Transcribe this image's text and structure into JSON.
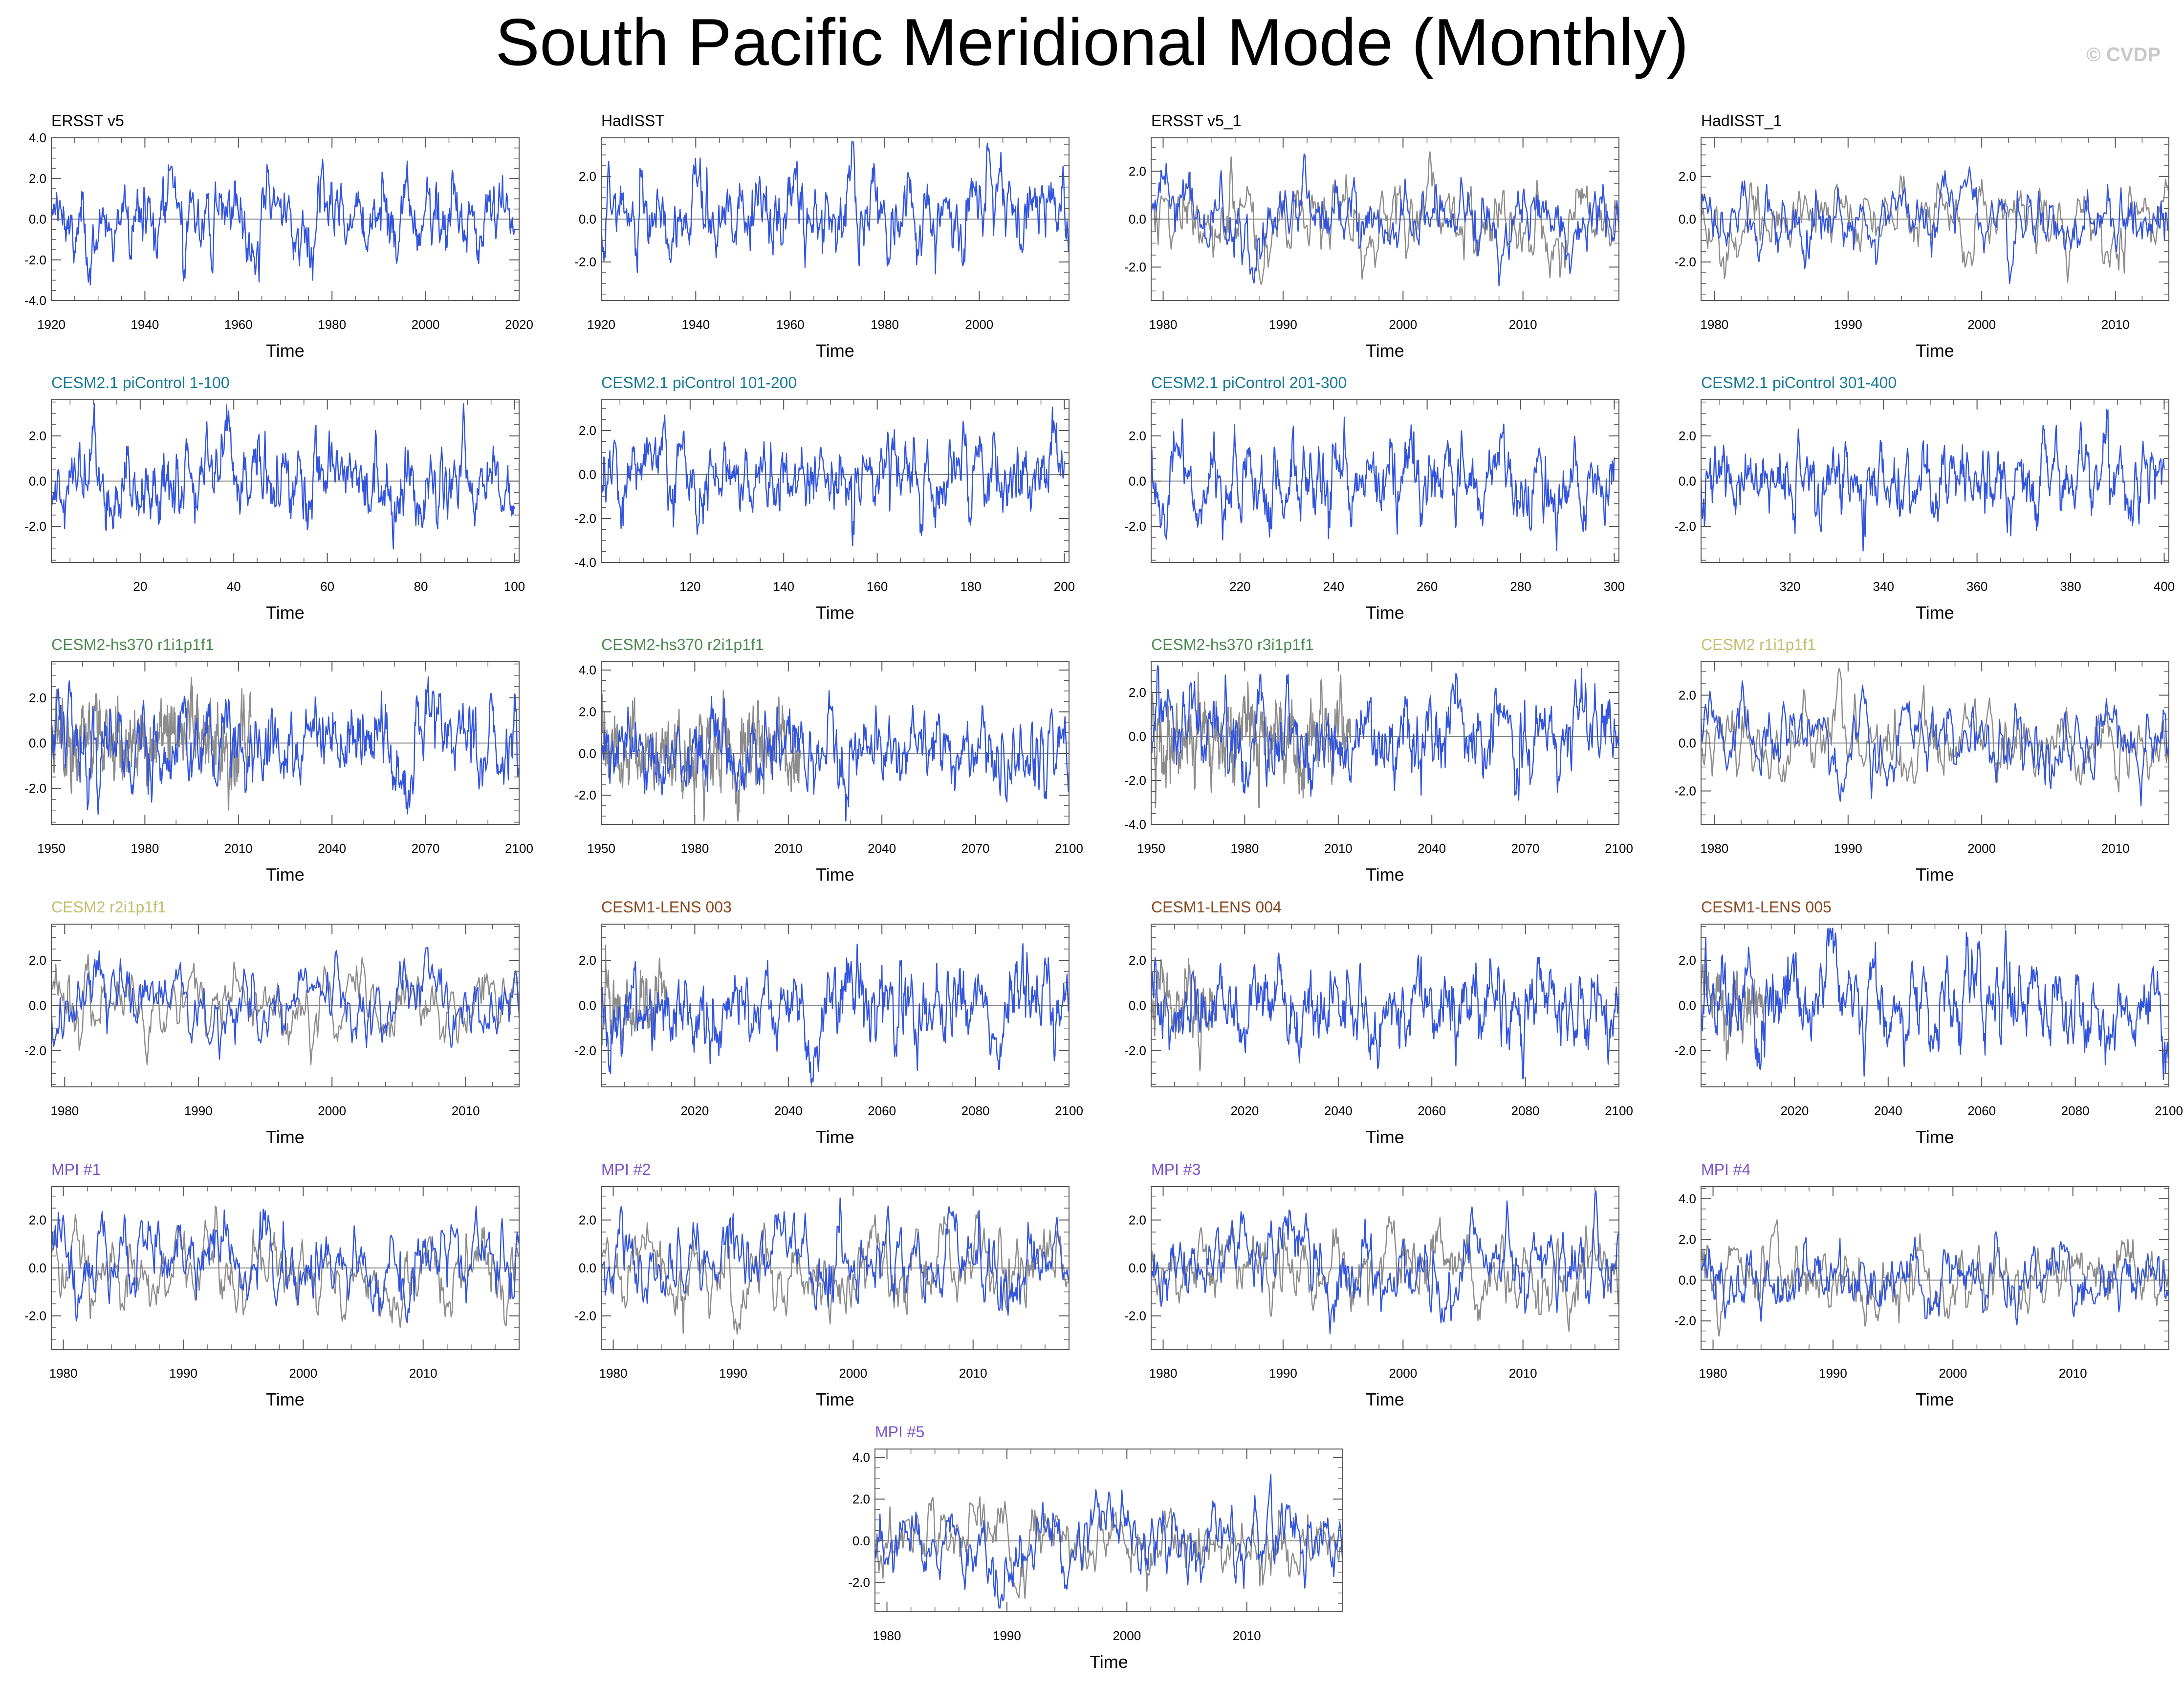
{
  "title": "South Pacific Meridional Mode (Monthly)",
  "watermark": "© CVDP",
  "colors": {
    "model_series": "#3355dd",
    "observation_series": "#8c8c8c",
    "zero_line": "#888888",
    "frame": "#555555"
  },
  "chart_data": [
    {
      "type": "line",
      "panel_title": "ERSST v5",
      "title_color": "#000000",
      "xlabel": "Time",
      "xlim": [
        1920,
        2020
      ],
      "xticks": [
        1920,
        1940,
        1960,
        1980,
        2000,
        2020
      ],
      "xtick_labels": [
        "1920",
        "1940",
        "1960",
        "1980",
        "2000",
        "2020"
      ],
      "ylim": [
        -4,
        4
      ],
      "yticks": [
        -4,
        -2,
        0,
        2,
        4
      ],
      "ytick_labels": [
        "-4.0",
        "-2.0",
        "0.0",
        "2.0",
        "4.0"
      ],
      "series": [
        {
          "x_range": [
            1920,
            2019
          ],
          "amplitude": 1.05,
          "seed": 11,
          "role": "model"
        }
      ]
    },
    {
      "type": "line",
      "panel_title": "HadISST",
      "title_color": "#000000",
      "xlabel": "Time",
      "xlim": [
        1920,
        2019
      ],
      "xticks": [
        1920,
        1940,
        1960,
        1980,
        2000
      ],
      "xtick_labels": [
        "1920",
        "1940",
        "1960",
        "1980",
        "2000"
      ],
      "ylim": [
        -3.8,
        3.8
      ],
      "yticks": [
        -2,
        0,
        2
      ],
      "ytick_labels": [
        "-2.0",
        "0.0",
        "2.0"
      ],
      "series": [
        {
          "x_range": [
            1920,
            2019
          ],
          "amplitude": 1.05,
          "seed": 12,
          "role": "model"
        }
      ]
    },
    {
      "type": "line",
      "panel_title": "ERSST v5_1",
      "title_color": "#000000",
      "xlabel": "Time",
      "xlim": [
        1979,
        2018
      ],
      "xticks": [
        1980,
        1990,
        2000,
        2010
      ],
      "xtick_labels": [
        "1980",
        "1990",
        "2000",
        "2010"
      ],
      "ylim": [
        -3.4,
        3.4
      ],
      "yticks": [
        -2,
        0,
        2
      ],
      "ytick_labels": [
        "-2.0",
        "0.0",
        "2.0"
      ],
      "series": [
        {
          "x_range": [
            1979,
            2018
          ],
          "amplitude": 0.9,
          "seed": 21,
          "role": "observation"
        },
        {
          "x_range": [
            1979,
            2018
          ],
          "amplitude": 0.95,
          "seed": 22,
          "role": "model"
        }
      ]
    },
    {
      "type": "line",
      "panel_title": "HadISST_1",
      "title_color": "#000000",
      "xlabel": "Time",
      "xlim": [
        1979,
        2014
      ],
      "xticks": [
        1980,
        1990,
        2000,
        2010
      ],
      "xtick_labels": [
        "1980",
        "1990",
        "2000",
        "2010"
      ],
      "ylim": [
        -3.8,
        3.8
      ],
      "yticks": [
        -2,
        0,
        2
      ],
      "ytick_labels": [
        "-2.0",
        "0.0",
        "2.0"
      ],
      "series": [
        {
          "x_range": [
            1979,
            2014
          ],
          "amplitude": 0.9,
          "seed": 31,
          "role": "observation"
        },
        {
          "x_range": [
            1979,
            2014
          ],
          "amplitude": 0.95,
          "seed": 32,
          "role": "model"
        }
      ]
    },
    {
      "type": "line",
      "panel_title": "CESM2.1 piControl 1-100",
      "title_color": "#167a96",
      "xlabel": "Time",
      "xlim": [
        1,
        101
      ],
      "xticks": [
        20,
        40,
        60,
        80,
        100
      ],
      "xtick_labels": [
        "20",
        "40",
        "60",
        "80",
        "100"
      ],
      "ylim": [
        -3.6,
        3.6
      ],
      "yticks": [
        -2,
        0,
        2
      ],
      "ytick_labels": [
        "-2.0",
        "0.0",
        "2.0"
      ],
      "series": [
        {
          "x_range": [
            1,
            100
          ],
          "amplitude": 1.0,
          "seed": 41,
          "role": "model"
        }
      ]
    },
    {
      "type": "line",
      "panel_title": "CESM2.1 piControl 101-200",
      "title_color": "#167a96",
      "xlabel": "Time",
      "xlim": [
        101,
        201
      ],
      "xticks": [
        120,
        140,
        160,
        180,
        200
      ],
      "xtick_labels": [
        "120",
        "140",
        "160",
        "180",
        "200"
      ],
      "ylim": [
        -4,
        3.4
      ],
      "yticks": [
        -4,
        -2,
        0,
        2
      ],
      "ytick_labels": [
        "-4.0",
        "-2.0",
        "0.0",
        "2.0"
      ],
      "series": [
        {
          "x_range": [
            101,
            200
          ],
          "amplitude": 1.0,
          "seed": 42,
          "role": "model"
        }
      ]
    },
    {
      "type": "line",
      "panel_title": "CESM2.1 piControl 201-300",
      "title_color": "#167a96",
      "xlabel": "Time",
      "xlim": [
        201,
        301
      ],
      "xticks": [
        220,
        240,
        260,
        280,
        300
      ],
      "xtick_labels": [
        "220",
        "240",
        "260",
        "280",
        "300"
      ],
      "ylim": [
        -3.6,
        3.6
      ],
      "yticks": [
        -2,
        0,
        2
      ],
      "ytick_labels": [
        "-2.0",
        "0.0",
        "2.0"
      ],
      "series": [
        {
          "x_range": [
            201,
            300
          ],
          "amplitude": 1.0,
          "seed": 43,
          "role": "model"
        }
      ]
    },
    {
      "type": "line",
      "panel_title": "CESM2.1 piControl 301-400",
      "title_color": "#167a96",
      "xlabel": "Time",
      "xlim": [
        301,
        401
      ],
      "xticks": [
        320,
        340,
        360,
        380,
        400
      ],
      "xtick_labels": [
        "320",
        "340",
        "360",
        "380",
        "400"
      ],
      "ylim": [
        -3.6,
        3.6
      ],
      "yticks": [
        -2,
        0,
        2
      ],
      "ytick_labels": [
        "-2.0",
        "0.0",
        "2.0"
      ],
      "series": [
        {
          "x_range": [
            301,
            400
          ],
          "amplitude": 1.0,
          "seed": 44,
          "role": "model"
        }
      ]
    },
    {
      "type": "line",
      "panel_title": "CESM2-hs370 r1i1p1f1",
      "title_color": "#4a8a4f",
      "xlabel": "Time",
      "xlim": [
        1950,
        2100
      ],
      "xticks": [
        1950,
        1980,
        2010,
        2040,
        2070,
        2100
      ],
      "xtick_labels": [
        "1950",
        "1980",
        "2010",
        "2040",
        "2070",
        "2100"
      ],
      "ylim": [
        -3.6,
        3.6
      ],
      "yticks": [
        -2,
        0,
        2
      ],
      "ytick_labels": [
        "-2.0",
        "0.0",
        "2.0"
      ],
      "series": [
        {
          "x_range": [
            1950,
            2014
          ],
          "amplitude": 1.0,
          "seed": 51,
          "role": "observation"
        },
        {
          "x_range": [
            1950,
            2100
          ],
          "amplitude": 1.1,
          "seed": 52,
          "role": "model"
        }
      ]
    },
    {
      "type": "line",
      "panel_title": "CESM2-hs370 r2i1p1f1",
      "title_color": "#4a8a4f",
      "xlabel": "Time",
      "xlim": [
        1950,
        2100
      ],
      "xticks": [
        1950,
        1980,
        2010,
        2040,
        2070,
        2100
      ],
      "xtick_labels": [
        "1950",
        "1980",
        "2010",
        "2040",
        "2070",
        "2100"
      ],
      "ylim": [
        -3.4,
        4.4
      ],
      "yticks": [
        -2,
        0,
        2,
        4
      ],
      "ytick_labels": [
        "-2.0",
        "0.0",
        "2.0",
        "4.0"
      ],
      "series": [
        {
          "x_range": [
            1950,
            2014
          ],
          "amplitude": 1.0,
          "seed": 53,
          "role": "observation"
        },
        {
          "x_range": [
            1950,
            2100
          ],
          "amplitude": 1.1,
          "seed": 54,
          "role": "model"
        }
      ]
    },
    {
      "type": "line",
      "panel_title": "CESM2-hs370 r3i1p1f1",
      "title_color": "#4a8a4f",
      "xlabel": "Time",
      "xlim": [
        1950,
        2100
      ],
      "xticks": [
        1950,
        1980,
        2010,
        2040,
        2070,
        2100
      ],
      "xtick_labels": [
        "1950",
        "1980",
        "2010",
        "2040",
        "2070",
        "2100"
      ],
      "ylim": [
        -4,
        3.4
      ],
      "yticks": [
        -4,
        -2,
        0,
        2
      ],
      "ytick_labels": [
        "-4.0",
        "-2.0",
        "0.0",
        "2.0"
      ],
      "series": [
        {
          "x_range": [
            1950,
            2014
          ],
          "amplitude": 1.0,
          "seed": 55,
          "role": "observation"
        },
        {
          "x_range": [
            1950,
            2100
          ],
          "amplitude": 1.1,
          "seed": 56,
          "role": "model"
        }
      ]
    },
    {
      "type": "line",
      "panel_title": "CESM2 r1i1p1f1",
      "title_color": "#c4be6c",
      "xlabel": "Time",
      "xlim": [
        1979,
        2014
      ],
      "xticks": [
        1980,
        1990,
        2000,
        2010
      ],
      "xtick_labels": [
        "1980",
        "1990",
        "2000",
        "2010"
      ],
      "ylim": [
        -3.4,
        3.4
      ],
      "yticks": [
        -2,
        0,
        2
      ],
      "ytick_labels": [
        "-2.0",
        "0.0",
        "2.0"
      ],
      "series": [
        {
          "x_range": [
            1979,
            2014
          ],
          "amplitude": 0.9,
          "seed": 61,
          "role": "observation"
        },
        {
          "x_range": [
            1979,
            2014
          ],
          "amplitude": 0.95,
          "seed": 62,
          "role": "model"
        }
      ]
    },
    {
      "type": "line",
      "panel_title": "CESM2 r2i1p1f1",
      "title_color": "#c4be6c",
      "xlabel": "Time",
      "xlim": [
        1979,
        2014
      ],
      "xticks": [
        1980,
        1990,
        2000,
        2010
      ],
      "xtick_labels": [
        "1980",
        "1990",
        "2000",
        "2010"
      ],
      "ylim": [
        -3.6,
        3.6
      ],
      "yticks": [
        -2,
        0,
        2
      ],
      "ytick_labels": [
        "-2.0",
        "0.0",
        "2.0"
      ],
      "series": [
        {
          "x_range": [
            1979,
            2014
          ],
          "amplitude": 0.9,
          "seed": 71,
          "role": "observation"
        },
        {
          "x_range": [
            1979,
            2014
          ],
          "amplitude": 0.95,
          "seed": 72,
          "role": "model"
        }
      ]
    },
    {
      "type": "line",
      "panel_title": "CESM1-LENS 003",
      "title_color": "#8a4a1f",
      "xlabel": "Time",
      "xlim": [
        2000,
        2100
      ],
      "xticks": [
        2020,
        2040,
        2060,
        2080,
        2100
      ],
      "xtick_labels": [
        "2020",
        "2040",
        "2060",
        "2080",
        "2100"
      ],
      "ylim": [
        -3.6,
        3.6
      ],
      "yticks": [
        -2,
        0,
        2
      ],
      "ytick_labels": [
        "-2.0",
        "0.0",
        "2.0"
      ],
      "series": [
        {
          "x_range": [
            2000,
            2014
          ],
          "amplitude": 0.9,
          "seed": 81,
          "role": "observation"
        },
        {
          "x_range": [
            2000,
            2100
          ],
          "amplitude": 1.05,
          "seed": 82,
          "role": "model"
        }
      ]
    },
    {
      "type": "line",
      "panel_title": "CESM1-LENS 004",
      "title_color": "#8a4a1f",
      "xlabel": "Time",
      "xlim": [
        2000,
        2100
      ],
      "xticks": [
        2020,
        2040,
        2060,
        2080,
        2100
      ],
      "xtick_labels": [
        "2020",
        "2040",
        "2060",
        "2080",
        "2100"
      ],
      "ylim": [
        -3.6,
        3.6
      ],
      "yticks": [
        -2,
        0,
        2
      ],
      "ytick_labels": [
        "-2.0",
        "0.0",
        "2.0"
      ],
      "series": [
        {
          "x_range": [
            2000,
            2014
          ],
          "amplitude": 0.9,
          "seed": 83,
          "role": "observation"
        },
        {
          "x_range": [
            2000,
            2100
          ],
          "amplitude": 1.05,
          "seed": 84,
          "role": "model"
        }
      ]
    },
    {
      "type": "line",
      "panel_title": "CESM1-LENS 005",
      "title_color": "#8a4a1f",
      "xlabel": "Time",
      "xlim": [
        2000,
        2100
      ],
      "xticks": [
        2020,
        2040,
        2060,
        2080,
        2100
      ],
      "xtick_labels": [
        "2020",
        "2040",
        "2060",
        "2080",
        "2100"
      ],
      "ylim": [
        -3.6,
        3.6
      ],
      "yticks": [
        -2,
        0,
        2
      ],
      "ytick_labels": [
        "-2.0",
        "0.0",
        "2.0"
      ],
      "series": [
        {
          "x_range": [
            2000,
            2014
          ],
          "amplitude": 0.9,
          "seed": 85,
          "role": "observation"
        },
        {
          "x_range": [
            2000,
            2100
          ],
          "amplitude": 1.05,
          "seed": 86,
          "role": "model"
        }
      ]
    },
    {
      "type": "line",
      "panel_title": "MPI #1",
      "title_color": "#7a55cc",
      "xlabel": "Time",
      "xlim": [
        1979,
        2018
      ],
      "xticks": [
        1980,
        1990,
        2000,
        2010
      ],
      "xtick_labels": [
        "1980",
        "1990",
        "2000",
        "2010"
      ],
      "ylim": [
        -3.4,
        3.4
      ],
      "yticks": [
        -2,
        0,
        2
      ],
      "ytick_labels": [
        "-2.0",
        "0.0",
        "2.0"
      ],
      "series": [
        {
          "x_range": [
            1979,
            2018
          ],
          "amplitude": 0.9,
          "seed": 91,
          "role": "observation"
        },
        {
          "x_range": [
            1979,
            2018
          ],
          "amplitude": 1.0,
          "seed": 92,
          "role": "model"
        }
      ]
    },
    {
      "type": "line",
      "panel_title": "MPI #2",
      "title_color": "#7a55cc",
      "xlabel": "Time",
      "xlim": [
        1979,
        2018
      ],
      "xticks": [
        1980,
        1990,
        2000,
        2010
      ],
      "xtick_labels": [
        "1980",
        "1990",
        "2000",
        "2010"
      ],
      "ylim": [
        -3.4,
        3.4
      ],
      "yticks": [
        -2,
        0,
        2
      ],
      "ytick_labels": [
        "-2.0",
        "0.0",
        "2.0"
      ],
      "series": [
        {
          "x_range": [
            1979,
            2018
          ],
          "amplitude": 0.9,
          "seed": 93,
          "role": "observation"
        },
        {
          "x_range": [
            1979,
            2018
          ],
          "amplitude": 1.0,
          "seed": 94,
          "role": "model"
        }
      ]
    },
    {
      "type": "line",
      "panel_title": "MPI #3",
      "title_color": "#7a55cc",
      "xlabel": "Time",
      "xlim": [
        1979,
        2018
      ],
      "xticks": [
        1980,
        1990,
        2000,
        2010
      ],
      "xtick_labels": [
        "1980",
        "1990",
        "2000",
        "2010"
      ],
      "ylim": [
        -3.4,
        3.4
      ],
      "yticks": [
        -2,
        0,
        2
      ],
      "ytick_labels": [
        "-2.0",
        "0.0",
        "2.0"
      ],
      "series": [
        {
          "x_range": [
            1979,
            2018
          ],
          "amplitude": 0.9,
          "seed": 95,
          "role": "observation"
        },
        {
          "x_range": [
            1979,
            2018
          ],
          "amplitude": 1.0,
          "seed": 96,
          "role": "model"
        }
      ]
    },
    {
      "type": "line",
      "panel_title": "MPI #4",
      "title_color": "#7a55cc",
      "xlabel": "Time",
      "xlim": [
        1979,
        2018
      ],
      "xticks": [
        1980,
        1990,
        2000,
        2010
      ],
      "xtick_labels": [
        "1980",
        "1990",
        "2000",
        "2010"
      ],
      "ylim": [
        -3.4,
        4.6
      ],
      "yticks": [
        -2,
        0,
        2,
        4
      ],
      "ytick_labels": [
        "-2.0",
        "0.0",
        "2.0",
        "4.0"
      ],
      "series": [
        {
          "x_range": [
            1979,
            2018
          ],
          "amplitude": 0.9,
          "seed": 97,
          "role": "observation"
        },
        {
          "x_range": [
            1979,
            2018
          ],
          "amplitude": 1.0,
          "seed": 98,
          "role": "model"
        }
      ]
    },
    {
      "type": "line",
      "panel_title": "MPI #5",
      "title_color": "#7a55cc",
      "xlabel": "Time",
      "xlim": [
        1979,
        2018
      ],
      "xticks": [
        1980,
        1990,
        2000,
        2010
      ],
      "xtick_labels": [
        "1980",
        "1990",
        "2000",
        "2010"
      ],
      "ylim": [
        -3.4,
        4.4
      ],
      "yticks": [
        -2,
        0,
        2,
        4
      ],
      "ytick_labels": [
        "-2.0",
        "0.0",
        "2.0",
        "4.0"
      ],
      "series": [
        {
          "x_range": [
            1979,
            2018
          ],
          "amplitude": 0.9,
          "seed": 99,
          "role": "observation"
        },
        {
          "x_range": [
            1979,
            2018
          ],
          "amplitude": 1.05,
          "seed": 100,
          "role": "model"
        }
      ]
    }
  ]
}
